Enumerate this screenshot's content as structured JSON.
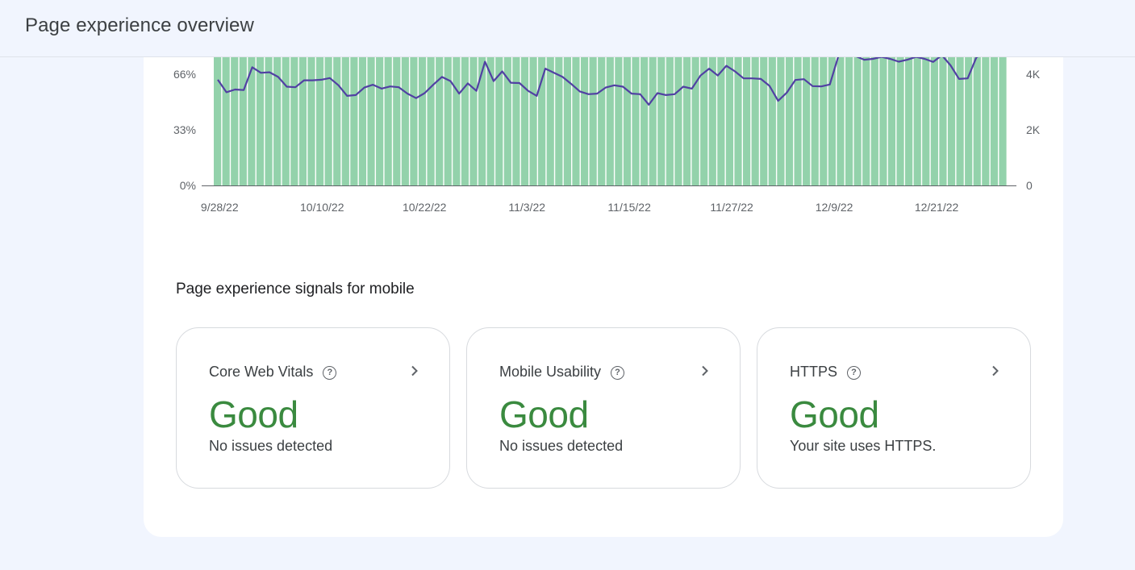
{
  "header": {
    "title": "Page experience overview"
  },
  "chart_data": {
    "type": "bar",
    "x_tick_labels": [
      "9/28/22",
      "10/10/22",
      "10/22/22",
      "11/3/22",
      "11/15/22",
      "11/27/22",
      "12/9/22",
      "12/21/22"
    ],
    "left_axis_ticks": [
      "0%",
      "33%",
      "66%"
    ],
    "right_axis_ticks": [
      "0",
      "2K",
      "4K"
    ],
    "ylim_left": [
      0,
      100
    ],
    "bar_count": 93,
    "bar_value_percent": 100,
    "bar_color": "#93d2ab",
    "line_color": "#5140a3",
    "series": [
      {
        "values": [
          3800,
          3350,
          3450,
          3430,
          4250,
          4050,
          4070,
          3900,
          3550,
          3530,
          3780,
          3780,
          3800,
          3860,
          3600,
          3220,
          3250,
          3520,
          3620,
          3480,
          3560,
          3530,
          3300,
          3140,
          3320,
          3620,
          3900,
          3750,
          3300,
          3670,
          3400,
          4450,
          3750,
          4100,
          3690,
          3680,
          3400,
          3220,
          4200,
          4050,
          3900,
          3650,
          3380,
          3280,
          3300,
          3520,
          3600,
          3550,
          3300,
          3280,
          2900,
          3320,
          3250,
          3280,
          3550,
          3480,
          3950,
          4200,
          3950,
          4300,
          4100,
          3850,
          3850,
          3830,
          3580,
          3040,
          3330,
          3790,
          3820,
          3570,
          3560,
          3630,
          4650,
          4750,
          4650,
          4520,
          4550,
          4620,
          4550,
          4450,
          4520,
          4620,
          4550,
          4440,
          4680,
          4320,
          3830,
          3850,
          4600,
          4800
        ]
      }
    ]
  },
  "signals": {
    "title": "Page experience signals for mobile",
    "cards": [
      {
        "name": "Core Web Vitals",
        "status": "Good",
        "desc": "No issues detected"
      },
      {
        "name": "Mobile Usability",
        "status": "Good",
        "desc": "No issues detected"
      },
      {
        "name": "HTTPS",
        "status": "Good",
        "desc": "Your site uses HTTPS."
      }
    ],
    "help_glyph": "?",
    "status_color": "#3a8a3f"
  }
}
